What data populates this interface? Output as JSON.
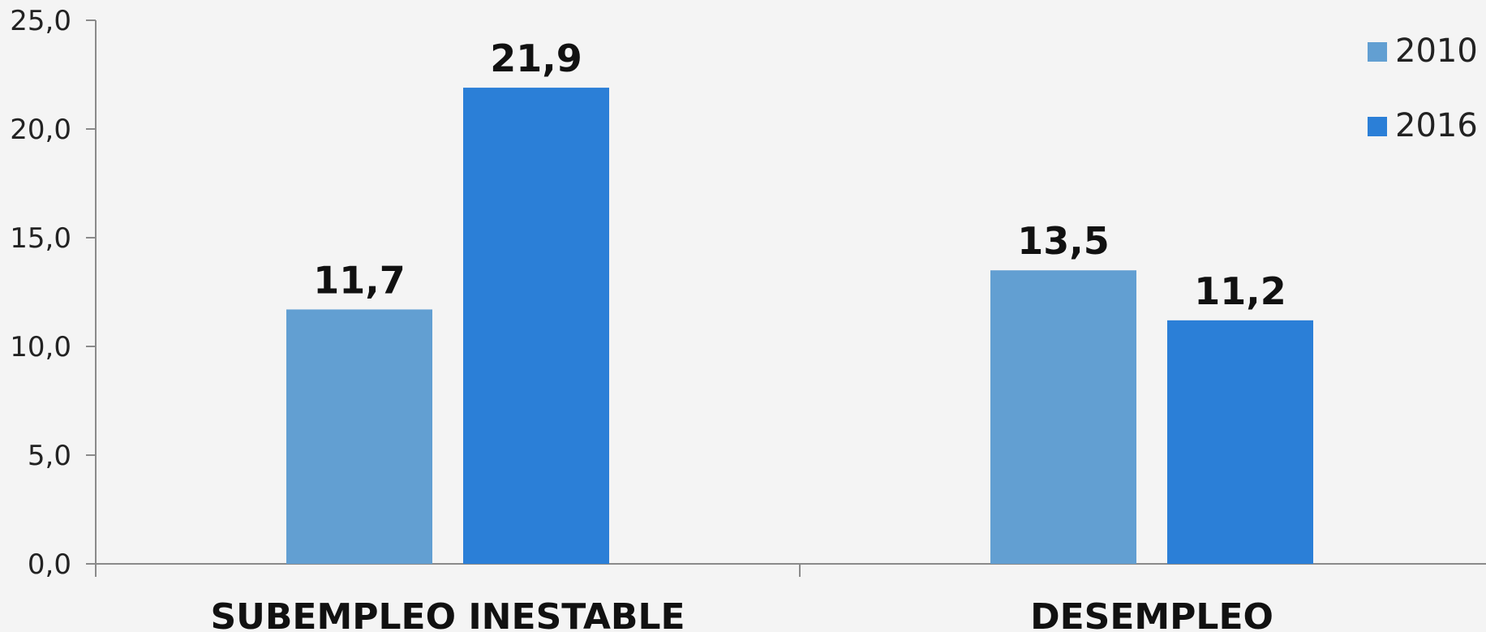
{
  "chart_data": {
    "type": "bar",
    "title": "",
    "xlabel": "",
    "ylabel": "",
    "categories": [
      "SUBEMPLEO INESTABLE",
      "DESEMPLEO"
    ],
    "series": [
      {
        "name": "2010",
        "color": "#629fd2",
        "values": [
          11.7,
          13.5
        ],
        "labels": [
          "11,7",
          "13,5"
        ]
      },
      {
        "name": "2016",
        "color": "#2b7fd7",
        "values": [
          21.9,
          11.2
        ],
        "labels": [
          "21,9",
          "11,2"
        ]
      }
    ],
    "ylim": [
      0,
      25
    ],
    "yticks": [
      0,
      5,
      10,
      15,
      20,
      25
    ],
    "ytick_labels": [
      "0,0",
      "5,0",
      "10,0",
      "15,0",
      "20,0",
      "25,0"
    ],
    "grid": false,
    "legend_position": "top-right"
  }
}
